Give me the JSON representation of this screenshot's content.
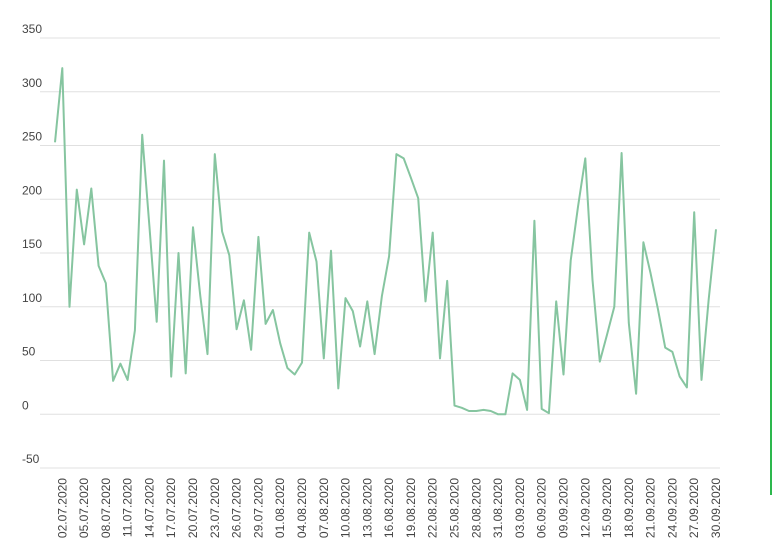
{
  "chart_data": {
    "type": "line",
    "categories": [
      null,
      "02.07.2020",
      null,
      null,
      "05.07.2020",
      null,
      null,
      "08.07.2020",
      null,
      null,
      "11.07.2020",
      null,
      null,
      "14.07.2020",
      null,
      null,
      "17.07.2020",
      null,
      null,
      "20.07.2020",
      null,
      null,
      "23.07.2020",
      null,
      null,
      "26.07.2020",
      null,
      null,
      "29.07.2020",
      null,
      null,
      "01.08.2020",
      null,
      null,
      "04.08.2020",
      null,
      null,
      "07.08.2020",
      null,
      null,
      "10.08.2020",
      null,
      null,
      "13.08.2020",
      null,
      null,
      "16.08.2020",
      null,
      null,
      "19.08.2020",
      null,
      null,
      "22.08.2020",
      null,
      null,
      "25.08.2020",
      null,
      null,
      "28.08.2020",
      null,
      null,
      "31.08.2020",
      null,
      null,
      "03.09.2020",
      null,
      null,
      "06.09.2020",
      null,
      null,
      "09.09.2020",
      null,
      null,
      "12.09.2020",
      null,
      null,
      "15.09.2020",
      null,
      null,
      "18.09.2020",
      null,
      null,
      "21.09.2020",
      null,
      null,
      "24.09.2020",
      null,
      null,
      "27.09.2020",
      null,
      null,
      "30.09.2020"
    ],
    "series": [
      {
        "color": "#86c5a0",
        "values": [
          253,
          322,
          100,
          209,
          158,
          210,
          138,
          122,
          31,
          47,
          32,
          78,
          260,
          175,
          86,
          236,
          35,
          150,
          38,
          174,
          110,
          56,
          242,
          170,
          148,
          79,
          106,
          60,
          165,
          84,
          97,
          66,
          43,
          37,
          48,
          169,
          142,
          52,
          152,
          24,
          108,
          96,
          63,
          105,
          56,
          110,
          147,
          242,
          238,
          220,
          201,
          105,
          169,
          52,
          124,
          8,
          6,
          3,
          3,
          4,
          3,
          0,
          0,
          38,
          32,
          4,
          180,
          5,
          1,
          105,
          37,
          143,
          193,
          238,
          125,
          49,
          74,
          100,
          243,
          85,
          19,
          160,
          131,
          98,
          62,
          58,
          35,
          25,
          188,
          32,
          107,
          172
        ]
      }
    ],
    "ylim": [
      -50,
      350
    ],
    "yticks": [
      -50,
      0,
      50,
      100,
      150,
      200,
      250,
      300,
      350
    ],
    "grid": true
  }
}
